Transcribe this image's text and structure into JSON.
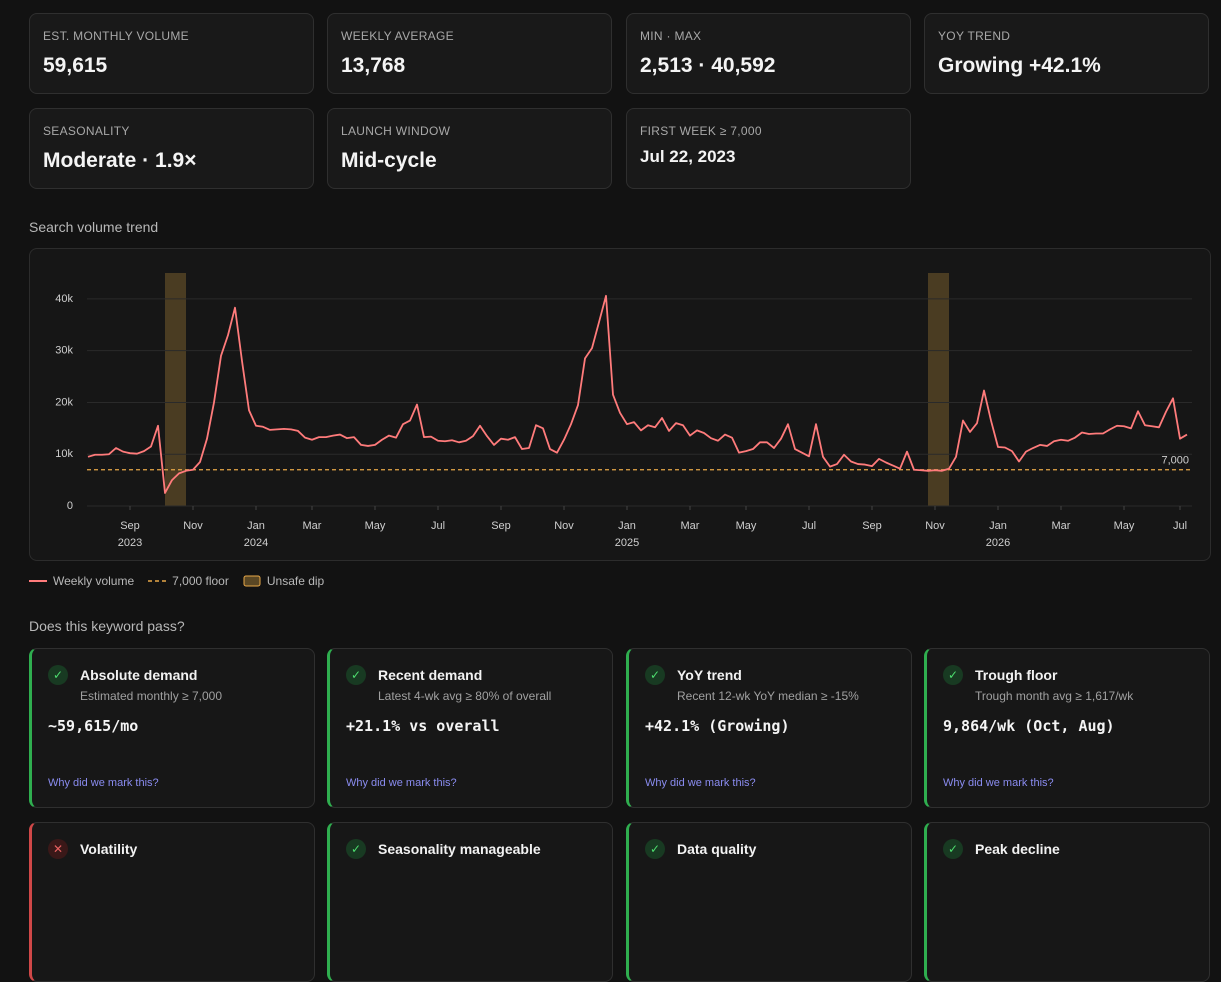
{
  "stats": [
    {
      "label": "EST. MONTHLY VOLUME",
      "value": "59,615"
    },
    {
      "label": "WEEKLY AVERAGE",
      "value": "13,768"
    },
    {
      "label": "MIN · MAX",
      "value": "2,513 · 40,592"
    },
    {
      "label": "YOY TREND",
      "value": "Growing +42.1%"
    },
    {
      "label": "SEASONALITY",
      "value": "Moderate · 1.9×"
    },
    {
      "label": "LAUNCH WINDOW",
      "value": "Mid-cycle"
    },
    {
      "label": "FIRST WEEK ≥ 7,000",
      "value": "Jul 22, 2023"
    }
  ],
  "chart_heading": "Search volume trend",
  "chart_data": {
    "type": "line",
    "categories": [
      null,
      null,
      null,
      null,
      null,
      null,
      "Sep",
      null,
      null,
      null,
      null,
      null,
      null,
      null,
      null,
      "Nov",
      null,
      null,
      null,
      null,
      null,
      null,
      null,
      null,
      "Jan",
      null,
      null,
      null,
      null,
      null,
      null,
      null,
      "Mar",
      null,
      null,
      null,
      null,
      null,
      null,
      null,
      null,
      "May",
      null,
      null,
      null,
      null,
      null,
      null,
      null,
      null,
      "Jul",
      null,
      null,
      null,
      null,
      null,
      null,
      null,
      null,
      "Sep",
      null,
      null,
      null,
      null,
      null,
      null,
      null,
      null,
      "Nov",
      null,
      null,
      null,
      null,
      null,
      null,
      null,
      null,
      "Jan",
      null,
      null,
      null,
      null,
      null,
      null,
      null,
      null,
      "Mar",
      null,
      null,
      null,
      null,
      null,
      null,
      null,
      "May",
      null,
      null,
      null,
      null,
      null,
      null,
      null,
      null,
      "Jul",
      null,
      null,
      null,
      null,
      null,
      null,
      null,
      null,
      "Sep",
      null,
      null,
      null,
      null,
      null,
      null,
      null,
      null,
      "Nov",
      null,
      null,
      null,
      null,
      null,
      null,
      null,
      null,
      "Jan",
      null,
      null,
      null,
      null,
      null,
      null,
      null,
      null,
      "Mar",
      null,
      null,
      null,
      null,
      null,
      null,
      null,
      null,
      "May",
      null,
      null,
      null,
      null,
      null,
      null,
      null,
      "Jul",
      null
    ],
    "years": [
      null,
      null,
      null,
      null,
      null,
      null,
      "2023",
      null,
      null,
      null,
      null,
      null,
      null,
      null,
      null,
      null,
      null,
      null,
      null,
      null,
      null,
      null,
      null,
      null,
      "2024",
      null,
      null,
      null,
      null,
      null,
      null,
      null,
      null,
      null,
      null,
      null,
      null,
      null,
      null,
      null,
      null,
      null,
      null,
      null,
      null,
      null,
      null,
      null,
      null,
      null,
      null,
      null,
      null,
      null,
      null,
      null,
      null,
      null,
      null,
      null,
      null,
      null,
      null,
      null,
      null,
      null,
      null,
      null,
      null,
      null,
      null,
      null,
      null,
      null,
      null,
      null,
      null,
      "2025",
      null,
      null,
      null,
      null,
      null,
      null,
      null,
      null,
      null,
      null,
      null,
      null,
      null,
      null,
      null,
      null,
      null,
      null,
      null,
      null,
      null,
      null,
      null,
      null,
      null,
      null,
      null,
      null,
      null,
      null,
      null,
      null,
      null,
      null,
      null,
      null,
      null,
      null,
      null,
      null,
      null,
      null,
      null,
      null,
      null,
      null,
      null,
      null,
      null,
      null,
      null,
      null,
      "2026",
      null,
      null,
      null,
      null,
      null,
      null,
      null,
      null,
      null,
      null,
      null,
      null,
      null,
      null,
      null,
      null,
      null,
      null,
      null,
      null,
      null,
      null,
      null,
      null,
      null,
      null,
      null
    ],
    "series": [
      {
        "name": "Weekly volume",
        "color": "#ff7b7b",
        "values": [
          9500,
          9900,
          9900,
          10000,
          11200,
          10500,
          10200,
          10100,
          10600,
          11500,
          15500,
          2513,
          5000,
          6300,
          6800,
          7000,
          8500,
          13000,
          20000,
          29000,
          33000,
          38300,
          28000,
          18500,
          15500,
          15300,
          14700,
          14800,
          14900,
          14800,
          14500,
          13200,
          12800,
          13300,
          13300,
          13600,
          13800,
          13100,
          13300,
          11800,
          11600,
          11800,
          12800,
          13600,
          13200,
          15800,
          16500,
          19600,
          13300,
          13400,
          12600,
          12500,
          12700,
          12300,
          12600,
          13500,
          15500,
          13500,
          11800,
          13000,
          12800,
          13300,
          11000,
          11200,
          15600,
          15000,
          11000,
          10300,
          12800,
          15800,
          19500,
          28500,
          30500,
          35500,
          40592,
          21500,
          18000,
          15800,
          16200,
          14600,
          15600,
          15200,
          17000,
          14500,
          16000,
          15600,
          13600,
          14600,
          14100,
          13100,
          12600,
          13800,
          13200,
          10300,
          10600,
          11000,
          12300,
          12300,
          11200,
          13000,
          15800,
          11000,
          10300,
          9600,
          15800,
          9500,
          7600,
          8100,
          9900,
          8600,
          8100,
          8000,
          7700,
          9100,
          8400,
          7800,
          7200,
          10500,
          7000,
          6900,
          6800,
          6900,
          6800,
          7200,
          9500,
          16500,
          14300,
          16000,
          22300,
          16500,
          11400,
          11300,
          10600,
          8600,
          10500,
          11200,
          11800,
          11600,
          12500,
          12800,
          12600,
          13200,
          14200,
          13900,
          14000,
          14000,
          14800,
          15500,
          15400,
          15000,
          18300,
          15600,
          15400,
          15200,
          18200,
          20800,
          13000,
          13800
        ]
      }
    ],
    "floor": {
      "name": "7,000 floor",
      "value": 7000,
      "label": "7,000",
      "color": "#e8a848"
    },
    "unsafe_dips": {
      "name": "Unsafe dip",
      "color": "#8a6a30",
      "ranges": [
        {
          "start": 11,
          "end": 14
        },
        {
          "start": 120,
          "end": 123
        }
      ]
    },
    "ylim": [
      0,
      45000
    ],
    "yticks": [
      0,
      {
        "value": 10000,
        "label": "10k"
      },
      {
        "value": 20000,
        "label": "20k"
      },
      {
        "value": 30000,
        "label": "30k"
      },
      {
        "value": 40000,
        "label": "40k"
      }
    ],
    "grid": true
  },
  "checks_heading": "Does this keyword pass?",
  "checks": [
    {
      "status": "pass",
      "title": "Absolute demand",
      "subtitle": "Estimated monthly ≥ 7,000",
      "result": "~59,615/mo",
      "link": "Why did we mark this?"
    },
    {
      "status": "pass",
      "title": "Recent demand",
      "subtitle": "Latest 4-wk avg ≥ 80% of overall",
      "result": "+21.1% vs overall",
      "link": "Why did we mark this?"
    },
    {
      "status": "pass",
      "title": "YoY trend",
      "subtitle": "Recent 12-wk YoY median ≥ -15%",
      "result": "+42.1% (Growing)",
      "link": "Why did we mark this?"
    },
    {
      "status": "pass",
      "title": "Trough floor",
      "subtitle": "Trough month avg ≥ 1,617/wk",
      "result": "9,864/wk (Oct, Aug)",
      "link": "Why did we mark this?"
    },
    {
      "status": "fail",
      "title": "Volatility"
    },
    {
      "status": "pass",
      "title": "Seasonality manageable"
    },
    {
      "status": "pass",
      "title": "Data quality"
    },
    {
      "status": "pass",
      "title": "Peak decline"
    }
  ]
}
